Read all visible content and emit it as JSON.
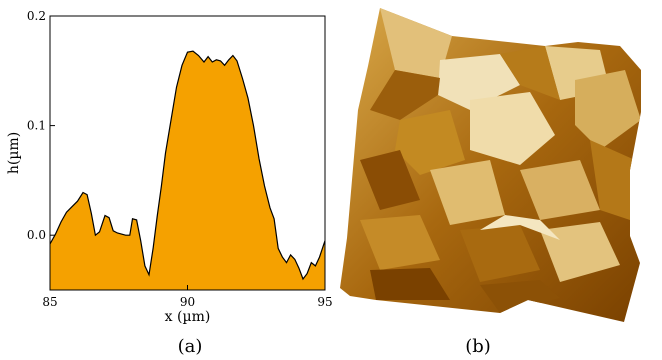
{
  "panels": {
    "a_label": "(a)",
    "b_label": "(b)"
  },
  "colors": {
    "fill": "#f5a100",
    "line": "#000000",
    "afm_light": "#f1e1b8",
    "afm_mid": "#c7901e",
    "afm_dark": "#6f3b00"
  },
  "chart_data": {
    "type": "area",
    "title": "",
    "xlabel": "x (µm)",
    "ylabel": "h(µm)",
    "xlim": [
      85,
      95
    ],
    "ylim": [
      -0.05,
      0.2
    ],
    "xticks": [
      85,
      90,
      95
    ],
    "xtick_labels": [
      "85",
      "90",
      "95"
    ],
    "yticks": [
      0.0,
      0.1,
      0.2
    ],
    "ytick_labels": [
      "0.0",
      "0.1",
      "0.2"
    ],
    "grid": false,
    "series": [
      {
        "x": [
          85.0,
          85.2,
          85.4,
          85.6,
          85.8,
          86.0,
          86.2,
          86.35,
          86.5,
          86.65,
          86.8,
          87.0,
          87.15,
          87.3,
          87.45,
          87.6,
          87.75,
          87.9,
          88.0,
          88.15,
          88.3,
          88.45,
          88.6,
          88.75,
          88.9,
          89.05,
          89.2,
          89.4,
          89.6,
          89.8,
          90.0,
          90.2,
          90.4,
          90.6,
          90.75,
          90.9,
          91.05,
          91.2,
          91.35,
          91.5,
          91.65,
          91.8,
          92.0,
          92.2,
          92.4,
          92.6,
          92.8,
          93.0,
          93.15,
          93.3,
          93.45,
          93.6,
          93.75,
          93.9,
          94.05,
          94.2,
          94.35,
          94.5,
          94.65,
          94.8,
          95.0
        ],
        "y": [
          -0.008,
          0.001,
          0.012,
          0.021,
          0.026,
          0.031,
          0.039,
          0.037,
          0.02,
          0.0,
          0.003,
          0.018,
          0.016,
          0.004,
          0.002,
          0.001,
          0.0,
          0.0,
          0.015,
          0.014,
          -0.005,
          -0.028,
          -0.036,
          -0.012,
          0.018,
          0.045,
          0.075,
          0.105,
          0.135,
          0.155,
          0.167,
          0.168,
          0.164,
          0.158,
          0.163,
          0.158,
          0.16,
          0.159,
          0.155,
          0.16,
          0.164,
          0.159,
          0.143,
          0.125,
          0.1,
          0.07,
          0.045,
          0.025,
          0.015,
          -0.012,
          -0.02,
          -0.025,
          -0.018,
          -0.022,
          -0.03,
          -0.04,
          -0.035,
          -0.025,
          -0.028,
          -0.02,
          -0.005
        ]
      }
    ]
  }
}
